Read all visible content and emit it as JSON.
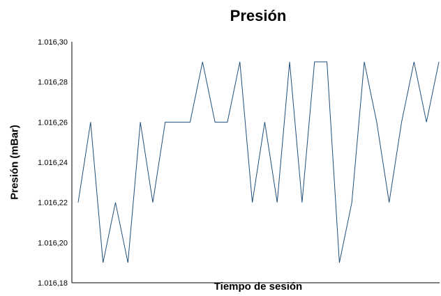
{
  "chart_data": {
    "type": "line",
    "title": "Presión",
    "xlabel": "Tiempo de sesión",
    "ylabel": "Presión (mBar)",
    "ylim": [
      1016.18,
      1016.3
    ],
    "ytick_labels": [
      "1.016,18",
      "1.016,20",
      "1.016,22",
      "1.016,24",
      "1.016,26",
      "1.016,28",
      "1.016,30"
    ],
    "grid": false,
    "legend": "none",
    "series": [
      {
        "color": "#1f4e79",
        "values": [
          1016.22,
          1016.26,
          1016.19,
          1016.22,
          1016.19,
          1016.26,
          1016.22,
          1016.26,
          1016.26,
          1016.26,
          1016.29,
          1016.26,
          1016.26,
          1016.29,
          1016.22,
          1016.26,
          1016.22,
          1016.29,
          1016.22,
          1016.29,
          1016.29,
          1016.19,
          1016.22,
          1016.29,
          1016.26,
          1016.22,
          1016.26,
          1016.29,
          1016.26,
          1016.29
        ]
      }
    ]
  }
}
